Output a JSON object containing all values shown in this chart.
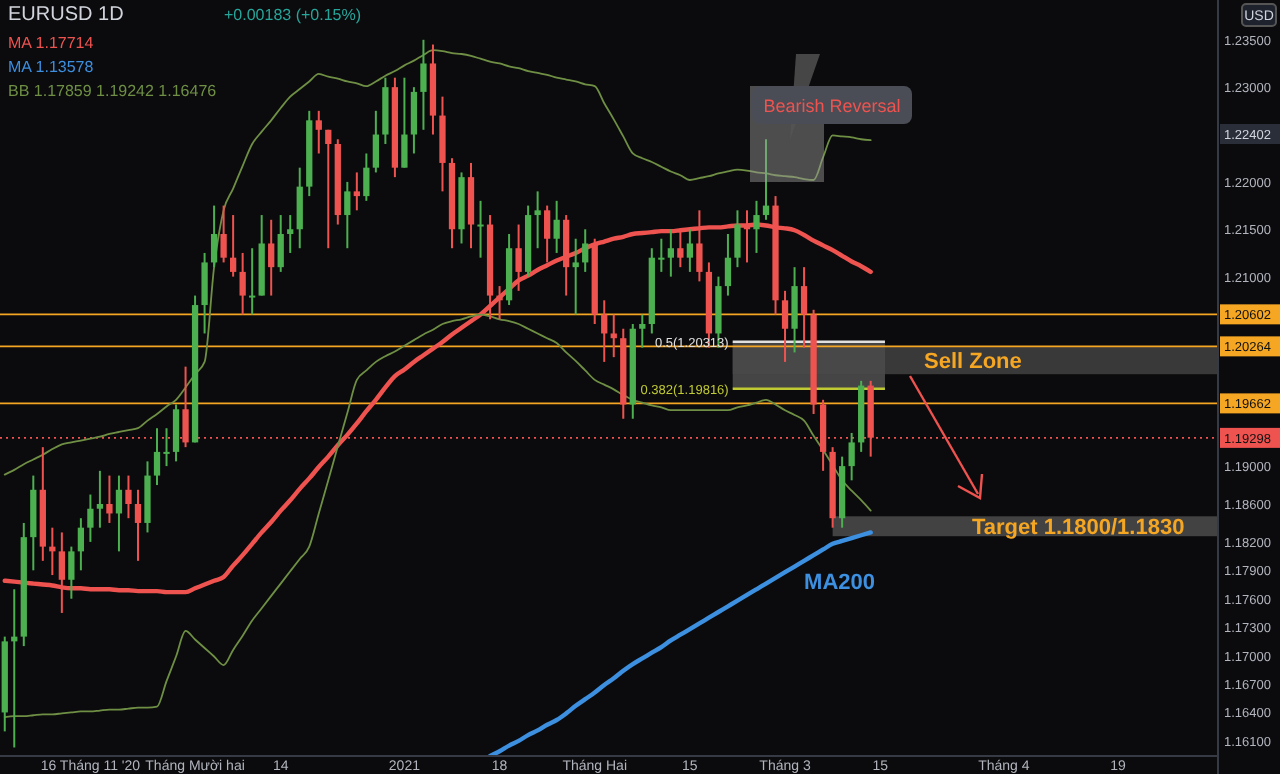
{
  "chart_data": {
    "type": "candlestick",
    "categories": [
      null,
      null,
      null,
      null,
      null,
      null,
      null,
      null,
      null,
      "16 Tháng 11 '20",
      null,
      null,
      null,
      null,
      null,
      null,
      null,
      null,
      null,
      null,
      "Tháng Mười hai",
      null,
      null,
      null,
      null,
      null,
      null,
      null,
      null,
      "14",
      null,
      null,
      null,
      null,
      null,
      null,
      null,
      null,
      null,
      null,
      null,
      null,
      "2021",
      null,
      null,
      null,
      null,
      null,
      null,
      null,
      null,
      null,
      "18",
      null,
      null,
      null,
      null,
      null,
      null,
      null,
      null,
      null,
      "Tháng Hai",
      null,
      null,
      null,
      null,
      null,
      null,
      null,
      null,
      null,
      "15",
      null,
      null,
      null,
      null,
      null,
      null,
      null,
      null,
      null,
      "Tháng 3",
      null,
      null,
      null,
      null,
      null,
      null,
      null,
      null,
      null,
      "15",
      null,
      null,
      null,
      null,
      null,
      null,
      null,
      null,
      null,
      null,
      null,
      null,
      "Tháng 4",
      null,
      null,
      null,
      null,
      null,
      null,
      null,
      null,
      null,
      null,
      null,
      "19",
      null,
      null,
      null,
      null,
      null,
      null,
      null,
      null,
      null,
      null
    ],
    "ohlc": [
      [
        1.164,
        1.172,
        1.162,
        1.1715
      ],
      [
        1.1715,
        1.177,
        1.1603,
        1.172
      ],
      [
        1.172,
        1.184,
        1.171,
        1.1825
      ],
      [
        1.1825,
        1.189,
        1.179,
        1.1875
      ],
      [
        1.1875,
        1.192,
        1.18,
        1.1815
      ],
      [
        1.1815,
        1.1835,
        1.1785,
        1.181
      ],
      [
        1.181,
        1.183,
        1.1745,
        1.178
      ],
      [
        1.178,
        1.1815,
        1.176,
        1.181
      ],
      [
        1.181,
        1.1845,
        1.179,
        1.1835
      ],
      [
        1.1835,
        1.187,
        1.182,
        1.1855
      ],
      [
        1.1855,
        1.1895,
        1.1835,
        1.186
      ],
      [
        1.186,
        1.189,
        1.184,
        1.185
      ],
      [
        1.185,
        1.189,
        1.181,
        1.1875
      ],
      [
        1.1875,
        1.189,
        1.1845,
        1.186
      ],
      [
        1.186,
        1.1875,
        1.18,
        1.184
      ],
      [
        1.184,
        1.1905,
        1.183,
        1.189
      ],
      [
        1.189,
        1.194,
        1.188,
        1.1915
      ],
      [
        1.1915,
        1.194,
        1.19,
        1.1915
      ],
      [
        1.1915,
        1.1965,
        1.1905,
        1.196
      ],
      [
        1.196,
        1.2005,
        1.192,
        1.1925
      ],
      [
        1.1925,
        1.208,
        1.1925,
        1.207
      ],
      [
        1.207,
        1.2125,
        1.204,
        1.2115
      ],
      [
        1.2115,
        1.2175,
        1.211,
        1.2145
      ],
      [
        1.2145,
        1.2175,
        1.2115,
        1.212
      ],
      [
        1.212,
        1.2165,
        1.21,
        1.2105
      ],
      [
        1.2105,
        1.2125,
        1.206,
        1.208
      ],
      [
        1.208,
        1.213,
        1.206,
        1.208
      ],
      [
        1.208,
        1.2165,
        1.208,
        1.2135
      ],
      [
        1.2135,
        1.216,
        1.208,
        1.211
      ],
      [
        1.211,
        1.2165,
        1.2105,
        1.2145
      ],
      [
        1.2145,
        1.2165,
        1.2125,
        1.215
      ],
      [
        1.215,
        1.2215,
        1.213,
        1.2195
      ],
      [
        1.2195,
        1.2275,
        1.2185,
        1.2265
      ],
      [
        1.2265,
        1.2275,
        1.223,
        1.2255
      ],
      [
        1.2255,
        1.2255,
        1.213,
        1.224
      ],
      [
        1.224,
        1.2245,
        1.2155,
        1.2165
      ],
      [
        1.2165,
        1.22,
        1.213,
        1.219
      ],
      [
        1.219,
        1.221,
        1.217,
        1.2185
      ],
      [
        1.2185,
        1.223,
        1.218,
        1.2215
      ],
      [
        1.2215,
        1.2275,
        1.221,
        1.225
      ],
      [
        1.225,
        1.231,
        1.224,
        1.23
      ],
      [
        1.23,
        1.231,
        1.2205,
        1.2215
      ],
      [
        1.2215,
        1.231,
        1.2215,
        1.225
      ],
      [
        1.225,
        1.23,
        1.223,
        1.2295
      ],
      [
        1.2295,
        1.235,
        1.2255,
        1.2325
      ],
      [
        1.2325,
        1.2345,
        1.225,
        1.227
      ],
      [
        1.227,
        1.229,
        1.219,
        1.222
      ],
      [
        1.222,
        1.2225,
        1.213,
        1.215
      ],
      [
        1.215,
        1.221,
        1.2135,
        1.2205
      ],
      [
        1.2205,
        1.222,
        1.213,
        1.2155
      ],
      [
        1.2155,
        1.218,
        1.212,
        1.2155
      ],
      [
        1.2155,
        1.2165,
        1.2055,
        1.208
      ],
      [
        1.208,
        1.209,
        1.2055,
        1.2075
      ],
      [
        1.2075,
        1.2145,
        1.207,
        1.213
      ],
      [
        1.213,
        1.2155,
        1.2085,
        1.2105
      ],
      [
        1.2105,
        1.2175,
        1.21,
        1.2165
      ],
      [
        1.2165,
        1.219,
        1.213,
        1.217
      ],
      [
        1.217,
        1.2175,
        1.2115,
        1.214
      ],
      [
        1.214,
        1.218,
        1.2125,
        1.216
      ],
      [
        1.216,
        1.2165,
        1.208,
        1.211
      ],
      [
        1.211,
        1.214,
        1.206,
        1.2115
      ],
      [
        1.2115,
        1.215,
        1.2105,
        1.2135
      ],
      [
        1.2135,
        1.214,
        1.205,
        1.206
      ],
      [
        1.206,
        1.2075,
        1.201,
        1.204
      ],
      [
        1.204,
        1.206,
        1.2015,
        1.2035
      ],
      [
        1.2035,
        1.2045,
        1.195,
        1.1965
      ],
      [
        1.1965,
        1.205,
        1.195,
        1.2045
      ],
      [
        1.2045,
        1.206,
        1.2025,
        1.205
      ],
      [
        1.205,
        1.213,
        1.204,
        1.212
      ],
      [
        1.212,
        1.214,
        1.2105,
        1.212
      ],
      [
        1.212,
        1.215,
        1.21,
        1.213
      ],
      [
        1.213,
        1.215,
        1.211,
        1.212
      ],
      [
        1.212,
        1.215,
        1.2105,
        1.2135
      ],
      [
        1.2135,
        1.217,
        1.2095,
        1.2105
      ],
      [
        1.2105,
        1.2115,
        1.2025,
        1.204
      ],
      [
        1.204,
        1.21,
        1.2025,
        1.209
      ],
      [
        1.209,
        1.2145,
        1.208,
        1.212
      ],
      [
        1.212,
        1.217,
        1.211,
        1.2155
      ],
      [
        1.2155,
        1.217,
        1.2115,
        1.215
      ],
      [
        1.215,
        1.218,
        1.2125,
        1.2165
      ],
      [
        1.2165,
        1.2245,
        1.216,
        1.2175
      ],
      [
        1.2175,
        1.2185,
        1.206,
        1.2075
      ],
      [
        1.2075,
        1.2085,
        1.201,
        1.2045
      ],
      [
        1.2045,
        1.211,
        1.202,
        1.209
      ],
      [
        1.209,
        1.211,
        1.2025,
        1.206
      ],
      [
        1.206,
        1.2065,
        1.1955,
        1.1965
      ],
      [
        1.1965,
        1.197,
        1.1895,
        1.1915
      ],
      [
        1.1915,
        1.192,
        1.1835,
        1.1845
      ],
      [
        1.1845,
        1.191,
        1.1835,
        1.19
      ],
      [
        1.19,
        1.1935,
        1.1885,
        1.1925
      ],
      [
        1.1925,
        1.199,
        1.1915,
        1.1985
      ],
      [
        1.1985,
        1.199,
        1.191,
        1.193
      ],
      null,
      null,
      null,
      null,
      null,
      null,
      null,
      null,
      null,
      null,
      null,
      null,
      null,
      null,
      null,
      null,
      null,
      null,
      null,
      null,
      null,
      null,
      null,
      null,
      null,
      null,
      null,
      null,
      null,
      null,
      null,
      null,
      null,
      null,
      null,
      null
    ],
    "series": [
      {
        "type": "line",
        "color": "#ef5350",
        "values": [
          1.1779,
          1.1778,
          1.1777,
          1.1776,
          1.1775,
          1.1774,
          1.1772,
          1.1771,
          1.1771,
          1.177,
          1.177,
          1.177,
          1.1769,
          1.1769,
          1.1768,
          1.1768,
          1.1768,
          1.1767,
          1.1767,
          1.1767,
          1.1771,
          1.1775,
          1.1779,
          1.1783,
          1.1795,
          1.1806,
          1.1818,
          1.183,
          1.1841,
          1.1853,
          1.1864,
          1.1876,
          1.1887,
          1.1899,
          1.191,
          1.1922,
          1.1933,
          1.1945,
          1.1958,
          1.197,
          1.1983,
          1.1995,
          1.2002,
          1.201,
          1.2017,
          1.2024,
          1.2031,
          1.2039,
          1.2046,
          1.2053,
          1.206,
          1.2069,
          1.2078,
          1.2087,
          1.2096,
          1.2101,
          1.2107,
          1.2112,
          1.2117,
          1.2121,
          1.2125,
          1.213,
          1.2134,
          1.2137,
          1.214,
          1.2142,
          1.2145,
          1.2146,
          1.2147,
          1.2148,
          1.2148,
          1.2149,
          1.215,
          1.2151,
          1.2152,
          1.2152,
          1.2153,
          1.2154,
          1.2154,
          1.2155,
          1.2154,
          1.2152,
          1.2151,
          1.2149,
          1.2144,
          1.2138,
          1.2133,
          1.2128,
          1.2122,
          1.2116,
          1.2111,
          1.2105,
          null,
          null,
          null,
          null,
          null,
          null,
          null,
          null,
          null,
          null,
          null,
          null,
          null,
          null,
          null,
          null,
          null,
          null,
          null,
          null,
          null,
          null,
          null,
          null,
          null,
          null,
          null,
          null,
          null,
          null,
          null,
          null,
          null,
          null,
          null,
          null
        ]
      },
      {
        "type": "line",
        "name": "MA200",
        "color": "#3d8fe0",
        "values": [
          null,
          null,
          null,
          null,
          null,
          null,
          null,
          null,
          null,
          null,
          null,
          null,
          null,
          null,
          null,
          null,
          null,
          null,
          null,
          null,
          null,
          null,
          null,
          null,
          null,
          null,
          null,
          null,
          null,
          null,
          null,
          null,
          null,
          null,
          null,
          null,
          null,
          null,
          null,
          null,
          null,
          null,
          null,
          null,
          null,
          null,
          null,
          null,
          null,
          null,
          null,
          1.1594,
          1.1599,
          1.1605,
          1.161,
          1.1616,
          1.1621,
          1.1627,
          1.1632,
          1.1639,
          1.1647,
          1.1654,
          1.1661,
          1.1669,
          1.1676,
          1.1684,
          1.1691,
          1.1697,
          1.1703,
          1.1709,
          1.1716,
          1.1722,
          1.1728,
          1.1734,
          1.174,
          1.1746,
          1.1752,
          1.1758,
          1.1764,
          1.177,
          1.1776,
          1.1782,
          1.1788,
          1.1794,
          1.18,
          1.1806,
          1.1812,
          1.1818,
          1.1821,
          1.1824,
          1.1827,
          1.183,
          null,
          null,
          null,
          null,
          null,
          null,
          null,
          null,
          null,
          null,
          null,
          null,
          null,
          null,
          null,
          null,
          null,
          null,
          null,
          null,
          null,
          null,
          null,
          null,
          null,
          null,
          null,
          null,
          null,
          null,
          null,
          null,
          null,
          null,
          null,
          null
        ]
      },
      {
        "type": "line",
        "color": "#6f8f45",
        "values": [
          1.1891,
          1.1896,
          1.1902,
          1.1907,
          1.1912,
          1.1918,
          1.1923,
          1.1925,
          1.1927,
          1.1929,
          1.1931,
          1.1934,
          1.1936,
          1.1938,
          1.194,
          1.1948,
          1.1955,
          1.1963,
          1.197,
          1.1983,
          1.1997,
          1.201,
          1.211,
          1.217,
          1.2193,
          1.2217,
          1.224,
          1.2253,
          1.2265,
          1.2278,
          1.229,
          1.2298,
          1.2306,
          1.2314,
          1.2311,
          1.2309,
          1.2306,
          1.2304,
          1.2301,
          1.2306,
          1.2312,
          1.2317,
          1.2323,
          1.2328,
          1.2334,
          1.2339,
          1.2338,
          1.2336,
          1.2335,
          1.2333,
          1.233,
          1.2327,
          1.2325,
          1.2322,
          1.232,
          1.2317,
          1.2315,
          1.2313,
          1.231,
          1.2308,
          1.2306,
          1.2303,
          1.2301,
          1.2283,
          1.2266,
          1.2248,
          1.223,
          1.2225,
          1.2221,
          1.2216,
          1.2211,
          1.2207,
          1.2202,
          1.2204,
          1.2206,
          1.2209,
          1.2211,
          1.2213,
          1.2212,
          1.221,
          1.2209,
          1.2207,
          1.2206,
          1.2205,
          1.2203,
          1.2202,
          1.2226,
          1.2249,
          1.2248,
          1.2247,
          1.2245,
          1.2244,
          null,
          null,
          null,
          null,
          null,
          null,
          null,
          null,
          null,
          null,
          null,
          null,
          null,
          null,
          null,
          null,
          null,
          null,
          null,
          null,
          null,
          null,
          null,
          null,
          null,
          null,
          null,
          null,
          null,
          null,
          null,
          null,
          null,
          null,
          null,
          null
        ]
      },
      {
        "type": "line",
        "color": "#6f8f45",
        "values": [
          1.1635,
          1.1636,
          1.1636,
          1.1637,
          1.1638,
          1.1638,
          1.1639,
          1.164,
          1.1641,
          1.1641,
          1.1642,
          1.1643,
          1.1643,
          1.1644,
          1.1645,
          1.1645,
          1.1646,
          1.1673,
          1.1699,
          1.1726,
          1.1717,
          1.1708,
          1.1699,
          1.169,
          1.1706,
          1.1721,
          1.1737,
          1.175,
          1.1763,
          1.1776,
          1.1789,
          1.1802,
          1.1815,
          1.185,
          1.1885,
          1.1921,
          1.1956,
          1.1991,
          1.2001,
          1.201,
          1.2016,
          1.2021,
          1.2027,
          1.2033,
          1.2039,
          1.2044,
          1.205,
          1.2053,
          1.2055,
          1.2058,
          1.206,
          1.2058,
          1.2055,
          1.2053,
          1.205,
          1.2045,
          1.204,
          1.2035,
          1.203,
          1.202,
          1.2011,
          1.2001,
          1.1991,
          1.1986,
          1.1981,
          1.1975,
          1.197,
          1.1967,
          1.1964,
          1.1962,
          1.1959,
          1.1959,
          1.1959,
          1.1959,
          1.1959,
          1.1959,
          1.1959,
          1.1962,
          1.1964,
          1.1967,
          1.197,
          1.1965,
          1.1959,
          1.1954,
          1.1948,
          1.1932,
          1.1917,
          1.1901,
          1.1885,
          1.1874,
          1.1864,
          1.1853,
          null,
          null,
          null,
          null,
          null,
          null,
          null,
          null,
          null,
          null,
          null,
          null,
          null,
          null,
          null,
          null,
          null,
          null,
          null,
          null,
          null,
          null,
          null,
          null,
          null,
          null,
          null,
          null,
          null,
          null,
          null,
          null,
          null,
          null,
          null,
          null
        ]
      }
    ],
    "ylim": [
      1.1594,
      1.2392
    ],
    "yticks": [
      {
        "value": 1.235,
        "label": "1.23500"
      },
      {
        "value": 1.23,
        "label": "1.23000"
      },
      {
        "value": 1.22,
        "label": "1.22000"
      },
      {
        "value": 1.215,
        "label": "1.21500"
      },
      {
        "value": 1.21,
        "label": "1.21000"
      },
      {
        "value": 1.19,
        "label": "1.19000"
      },
      {
        "value": 1.186,
        "label": "1.18600"
      },
      {
        "value": 1.182,
        "label": "1.18200"
      },
      {
        "value": 1.179,
        "label": "1.17900"
      },
      {
        "value": 1.176,
        "label": "1.17600"
      },
      {
        "value": 1.173,
        "label": "1.17300"
      },
      {
        "value": 1.17,
        "label": "1.17000"
      },
      {
        "value": 1.167,
        "label": "1.16700"
      },
      {
        "value": 1.164,
        "label": "1.16400"
      },
      {
        "value": 1.161,
        "label": "1.16100"
      }
    ],
    "ref_lines": [
      {
        "axis": "y",
        "value": 1.20602,
        "label": "1.20602",
        "color": "#f5a623"
      },
      {
        "axis": "y",
        "value": 1.20264,
        "label": "1.20264",
        "color": "#f5a623"
      },
      {
        "axis": "y",
        "value": 1.19662,
        "label": "1.19662",
        "color": "#f5a623"
      },
      {
        "axis": "y",
        "value": 1.19298,
        "label": "1.19298",
        "color": "#ef5350",
        "line_style": "dotted"
      },
      {
        "axis": "y",
        "value": 1.20313,
        "label": "0.5(1.20313)",
        "color": "#e0e0e0"
      },
      {
        "axis": "y",
        "value": 1.19816,
        "label": "0.382(1.19816)",
        "color": "#c0ca33"
      }
    ],
    "bands": [
      {
        "axis": "y",
        "from": 1.19816,
        "to": 1.20313,
        "color": "#5a5a5a"
      },
      {
        "axis": "y",
        "from": 1.1997,
        "to": 1.2026,
        "label": "Sell Zone",
        "color": "#4a4a4a"
      },
      {
        "axis": "y",
        "from": 1.1826,
        "to": 1.1847,
        "label": "Target 1.1800/1.1830",
        "color": "#555555"
      }
    ],
    "annotations": [
      "EURUSD 1D",
      "+0.00183 (+0.15%)",
      "MA 1.17714",
      "MA 1.13578",
      "BB 1.17859 1.19242 1.16476",
      "USD",
      "Bearish Reversal",
      "1.22402"
    ],
    "grid": false
  }
}
